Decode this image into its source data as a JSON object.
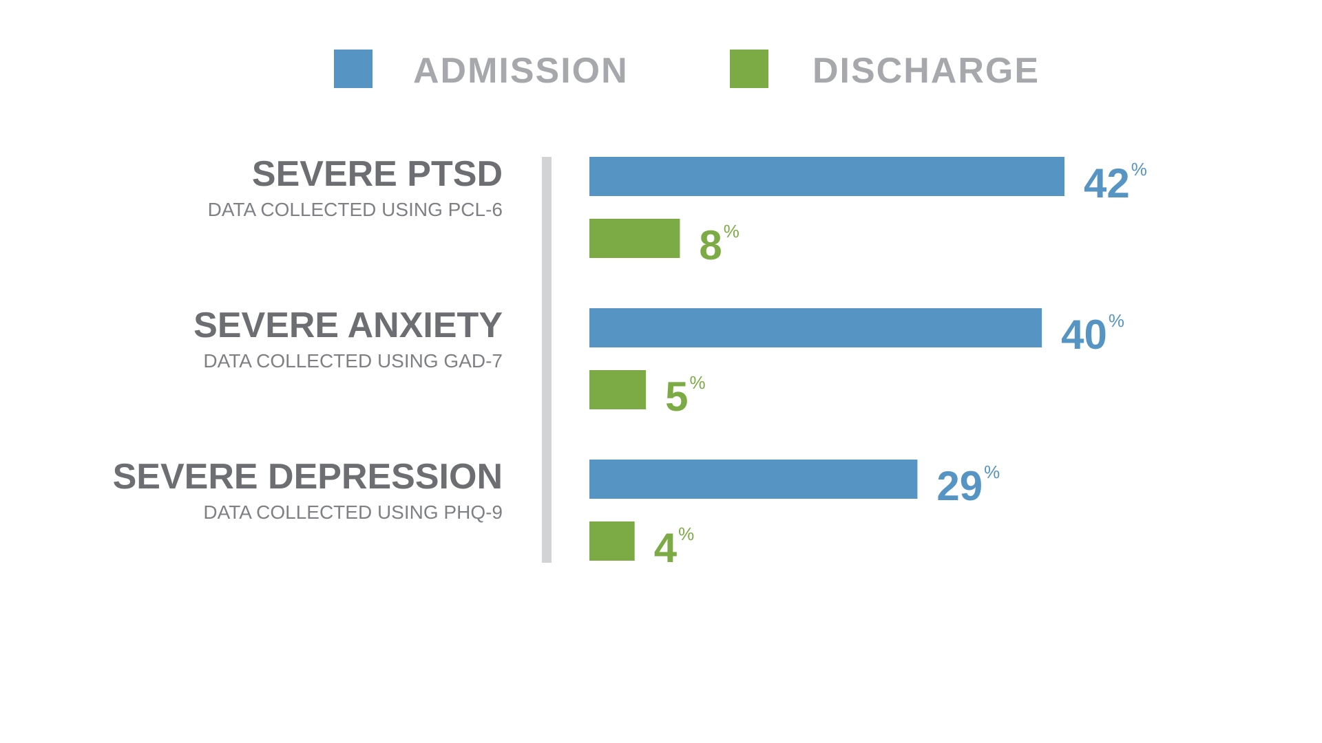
{
  "colors": {
    "admission": "#5594c3",
    "discharge": "#7cab45",
    "divider": "#d1d3d4"
  },
  "chart_data": {
    "type": "bar",
    "orientation": "horizontal",
    "title": "",
    "xlabel": "",
    "ylabel": "",
    "xlim": [
      0,
      50
    ],
    "grid": false,
    "legend_position": "top",
    "categories": [
      "SEVERE PTSD",
      "SEVERE ANXIETY",
      "SEVERE DEPRESSION"
    ],
    "subtitles": [
      "DATA COLLECTED USING PCL-6",
      "DATA COLLECTED USING GAD-7",
      "DATA COLLECTED USING PHQ-9"
    ],
    "value_suffix": "%",
    "series": [
      {
        "name": "ADMISSION",
        "color": "#5594c3",
        "values": [
          42,
          40,
          29
        ]
      },
      {
        "name": "DISCHARGE",
        "color": "#7cab45",
        "values": [
          8,
          5,
          4
        ]
      }
    ]
  }
}
